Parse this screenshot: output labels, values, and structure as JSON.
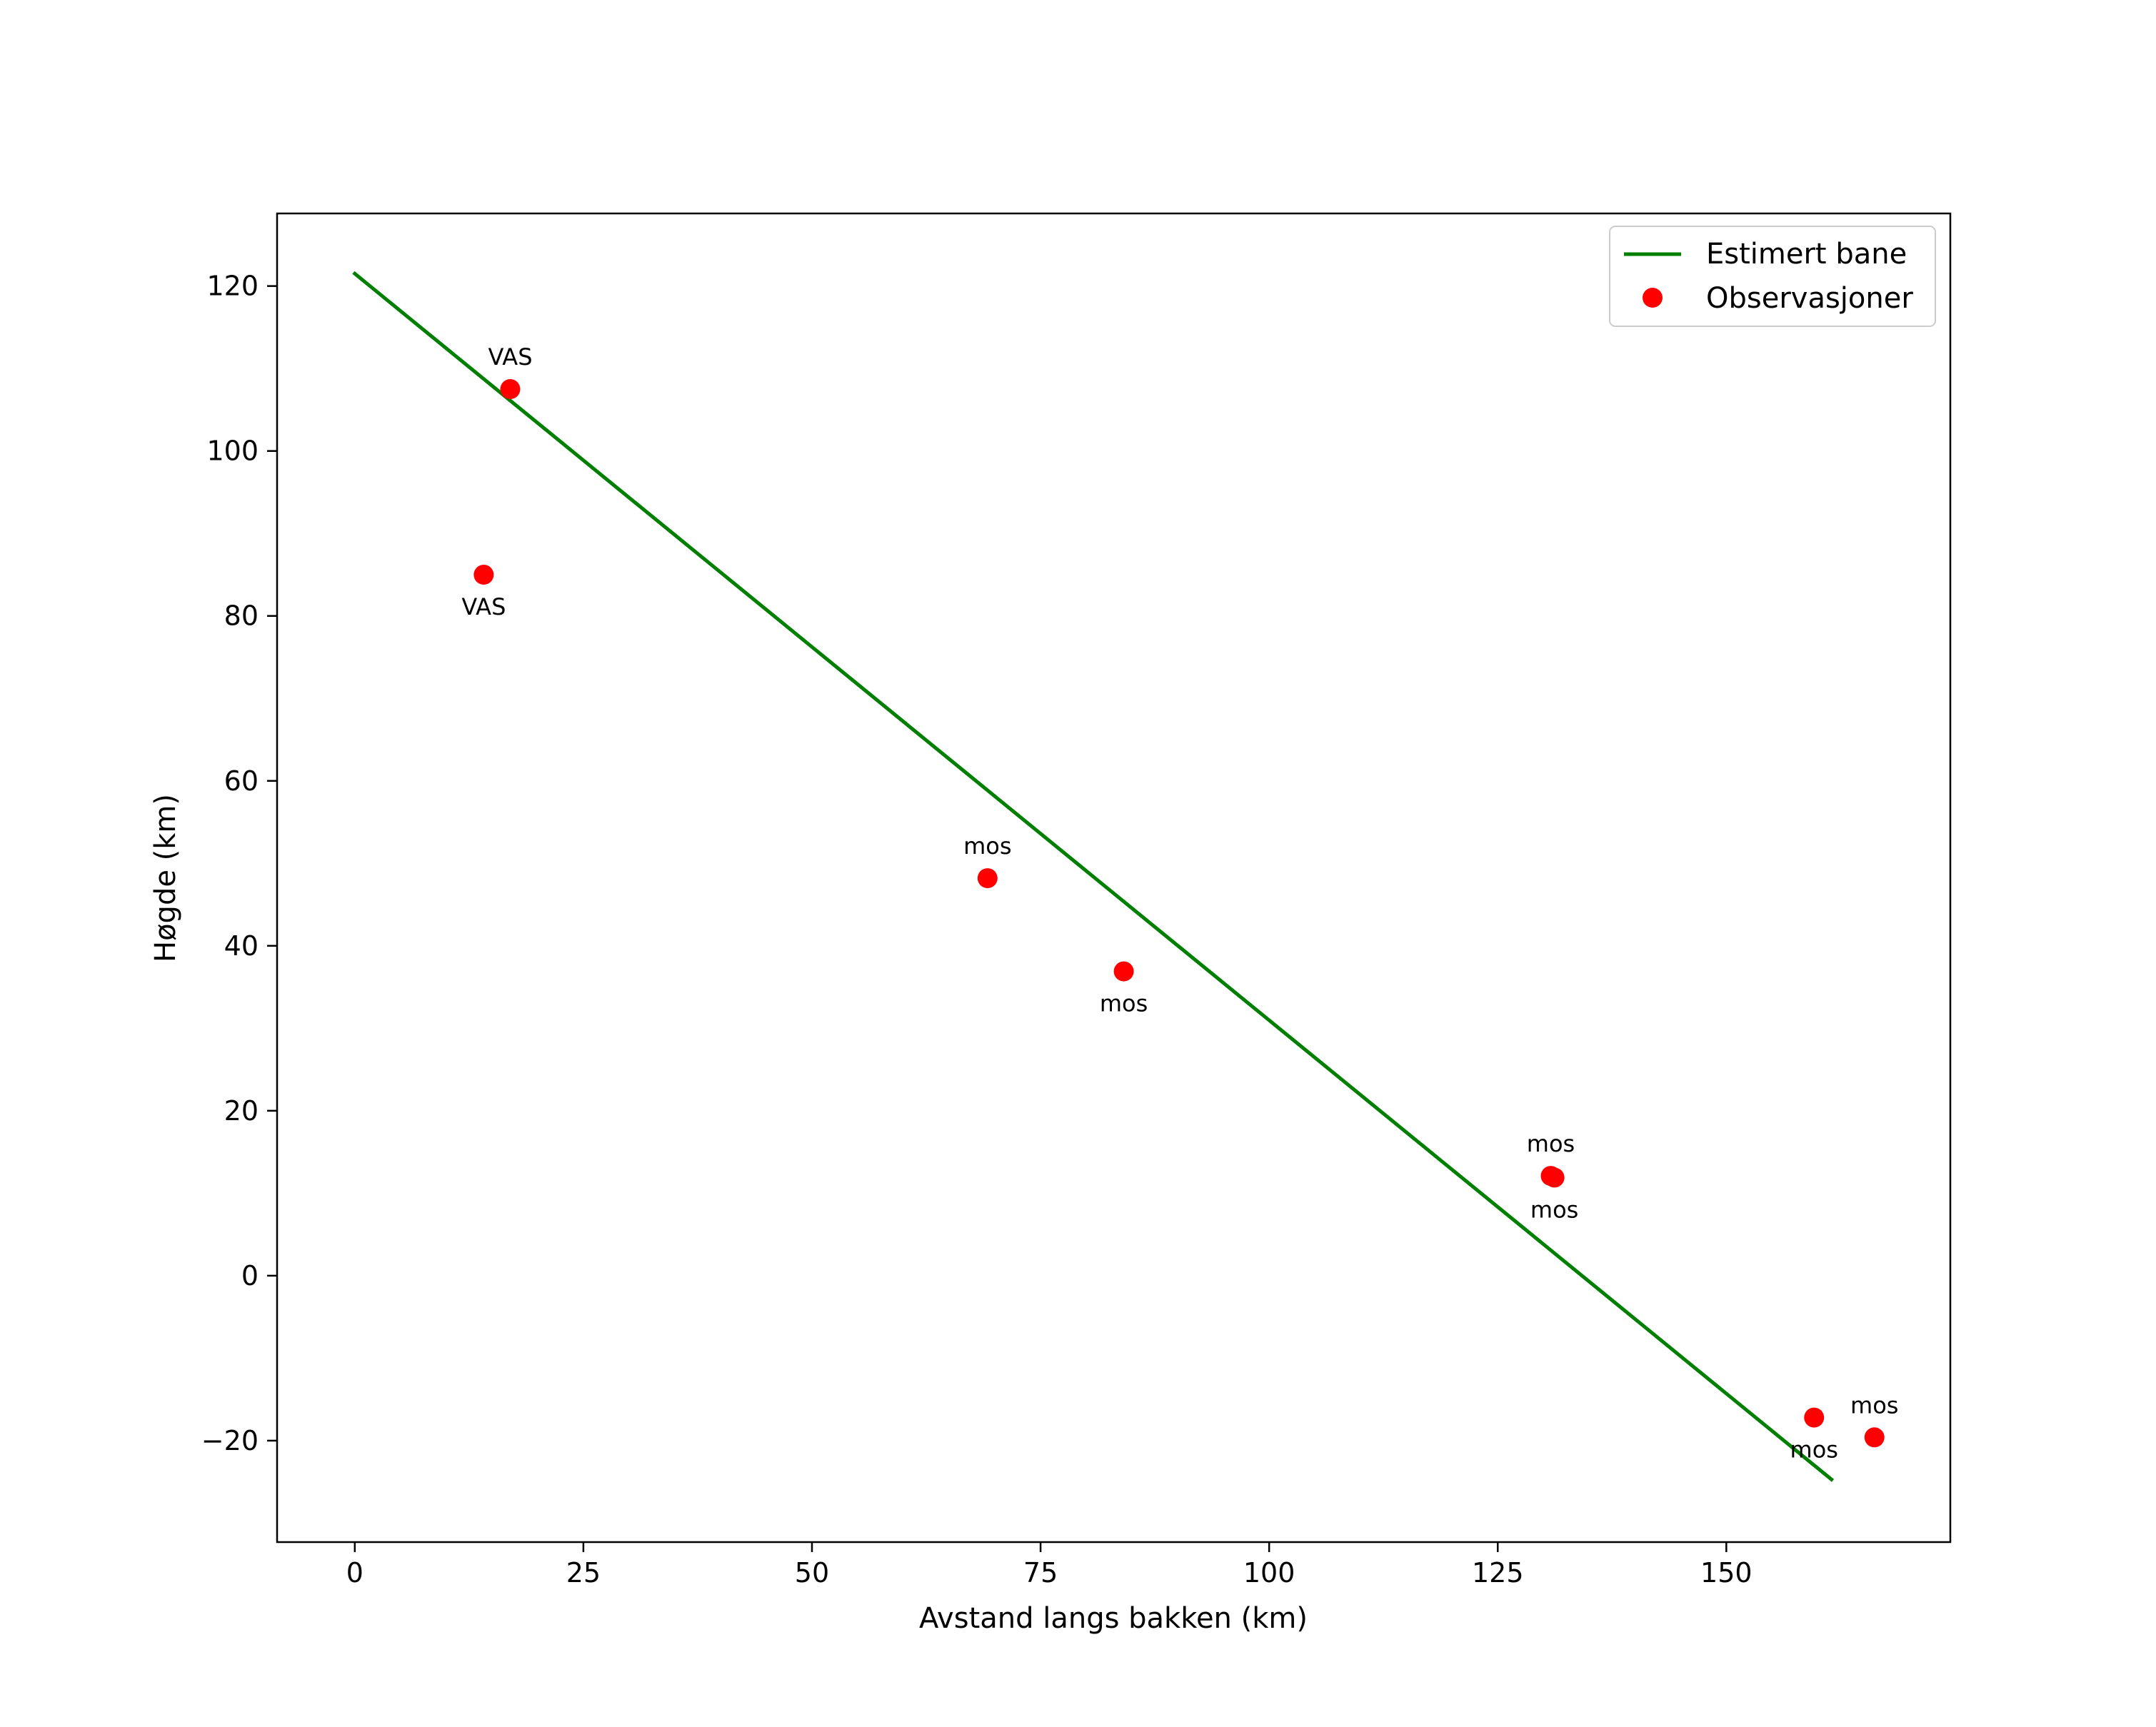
{
  "chart_data": {
    "type": "scatter",
    "title": "",
    "xlabel": "Avstand langs bakken (km)",
    "ylabel": "Høgde (km)",
    "xlim": [
      -8.5,
      174.5
    ],
    "ylim": [
      -32.3,
      128.8
    ],
    "xticks": [
      0,
      25,
      50,
      75,
      100,
      125,
      150
    ],
    "xtick_labels": [
      "0",
      "25",
      "50",
      "75",
      "100",
      "125",
      "150"
    ],
    "yticks": [
      -20,
      0,
      20,
      40,
      60,
      80,
      100,
      120
    ],
    "ytick_labels": [
      "−20",
      "0",
      "20",
      "40",
      "60",
      "80",
      "100",
      "120"
    ],
    "grid": false,
    "legend_position": "top-right",
    "line": {
      "name": "Estimert bane",
      "color": "#007f00",
      "x": [
        0,
        161.5
      ],
      "y": [
        121.5,
        -24.7
      ]
    },
    "observations": {
      "name": "Observasjoner",
      "color": "#ff0000",
      "points": [
        {
          "x": 17.0,
          "y": 107.5,
          "label": "VAS",
          "label_pos": "above"
        },
        {
          "x": 14.1,
          "y": 85.0,
          "label": "VAS",
          "label_pos": "below"
        },
        {
          "x": 69.2,
          "y": 48.2,
          "label": "mos",
          "label_pos": "above"
        },
        {
          "x": 84.1,
          "y": 36.9,
          "label": "mos",
          "label_pos": "below"
        },
        {
          "x": 130.8,
          "y": 12.1,
          "label": "mos",
          "label_pos": "above"
        },
        {
          "x": 131.2,
          "y": 11.9,
          "label": "mos",
          "label_pos": "below"
        },
        {
          "x": 159.6,
          "y": -17.2,
          "label": "mos",
          "label_pos": "below"
        },
        {
          "x": 166.2,
          "y": -19.6,
          "label": "mos",
          "label_pos": "above"
        }
      ]
    }
  }
}
